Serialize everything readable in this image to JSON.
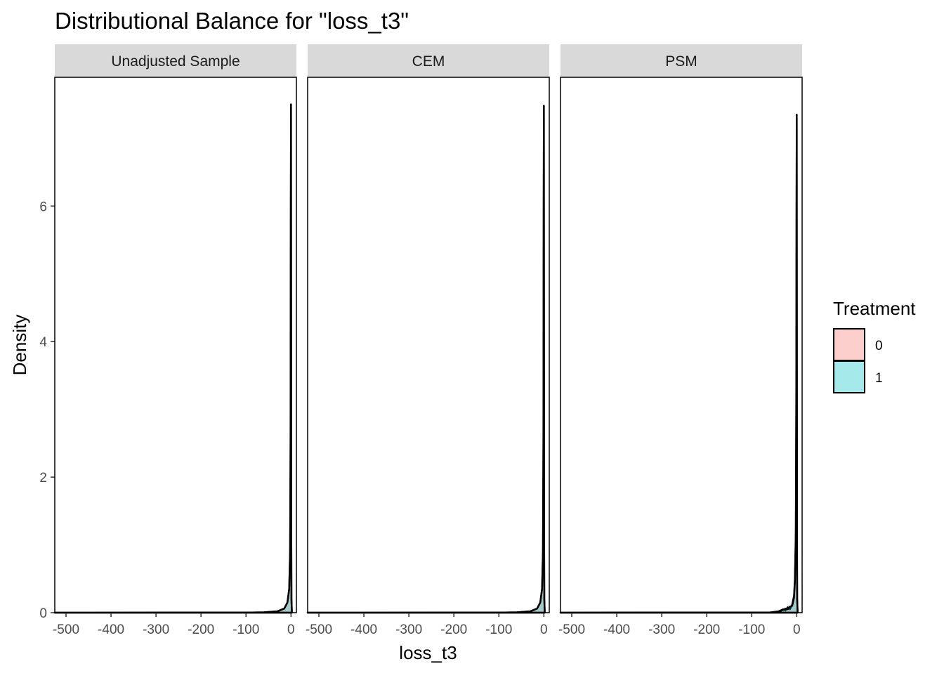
{
  "chart_data": {
    "type": "area",
    "title": "Distributional Balance for \"loss_t3\"",
    "xlabel": "loss_t3",
    "ylabel": "Density",
    "xlim": [
      -525,
      12
    ],
    "ylim": [
      0,
      7.9
    ],
    "x_ticks": [
      -500,
      -400,
      -300,
      -200,
      -100,
      0
    ],
    "x_tick_labels": [
      "-500",
      "-400",
      "-300",
      "-200",
      "-100",
      "0"
    ],
    "y_ticks": [
      0,
      2,
      4,
      6
    ],
    "y_tick_labels": [
      "0",
      "2",
      "4",
      "6"
    ],
    "grid": false,
    "legend": {
      "title": "Treatment",
      "placement": "right",
      "entries": [
        {
          "label": "0",
          "color": "#F8766D"
        },
        {
          "label": "1",
          "color": "#00BFC4"
        }
      ]
    },
    "panels": [
      {
        "name": "Unadjusted Sample",
        "series": [
          {
            "name": "0",
            "x": [
              -525,
              -100,
              -60,
              -30,
              -15,
              -8,
              -4,
              -2,
              -1,
              -0.5,
              0,
              0.3,
              0.6,
              1,
              2
            ],
            "y": [
              0,
              0.001,
              0.005,
              0.02,
              0.06,
              0.15,
              0.35,
              0.9,
              2.5,
              5.6,
              7.5,
              4.0,
              1.2,
              0.2,
              0
            ]
          },
          {
            "name": "1",
            "x": [
              -525,
              -100,
              -60,
              -30,
              -15,
              -8,
              -4,
              -2,
              -1,
              -0.5,
              0,
              0.3,
              0.6,
              1,
              2
            ],
            "y": [
              0,
              0.001,
              0.005,
              0.02,
              0.06,
              0.15,
              0.35,
              0.9,
              2.5,
              5.6,
              7.5,
              4.0,
              1.2,
              0.2,
              0
            ]
          }
        ]
      },
      {
        "name": "CEM",
        "series": [
          {
            "name": "0",
            "x": [
              -525,
              -100,
              -60,
              -30,
              -15,
              -8,
              -4,
              -2,
              -1,
              -0.5,
              0,
              0.3,
              0.6,
              1,
              2
            ],
            "y": [
              0,
              0.001,
              0.005,
              0.02,
              0.06,
              0.15,
              0.35,
              0.9,
              2.5,
              5.6,
              7.48,
              4.0,
              1.2,
              0.2,
              0
            ]
          },
          {
            "name": "1",
            "x": [
              -525,
              -100,
              -60,
              -30,
              -15,
              -8,
              -4,
              -2,
              -1,
              -0.5,
              0,
              0.3,
              0.6,
              1,
              2
            ],
            "y": [
              0,
              0.001,
              0.005,
              0.02,
              0.06,
              0.15,
              0.35,
              0.9,
              2.5,
              5.6,
              7.48,
              4.0,
              1.2,
              0.2,
              0
            ]
          }
        ]
      },
      {
        "name": "PSM",
        "series": [
          {
            "name": "0",
            "x": [
              -525,
              -60,
              -40,
              -30,
              -25,
              -20,
              -15,
              -10,
              -6,
              -4,
              -2,
              -1,
              -0.5,
              0,
              0.3,
              0.6,
              1,
              2
            ],
            "y": [
              0,
              0.003,
              0.02,
              0.05,
              0.03,
              0.08,
              0.05,
              0.12,
              0.25,
              0.5,
              1.2,
              3.0,
              5.5,
              7.35,
              4.0,
              1.2,
              0.2,
              0
            ]
          },
          {
            "name": "1",
            "x": [
              -525,
              -60,
              -40,
              -30,
              -25,
              -20,
              -15,
              -10,
              -6,
              -4,
              -2,
              -1,
              -0.5,
              0,
              0.3,
              0.6,
              1,
              2
            ],
            "y": [
              0,
              0.003,
              0.015,
              0.04,
              0.06,
              0.05,
              0.09,
              0.1,
              0.22,
              0.45,
              1.1,
              2.9,
              5.4,
              7.3,
              4.0,
              1.2,
              0.2,
              0
            ]
          }
        ]
      }
    ]
  }
}
